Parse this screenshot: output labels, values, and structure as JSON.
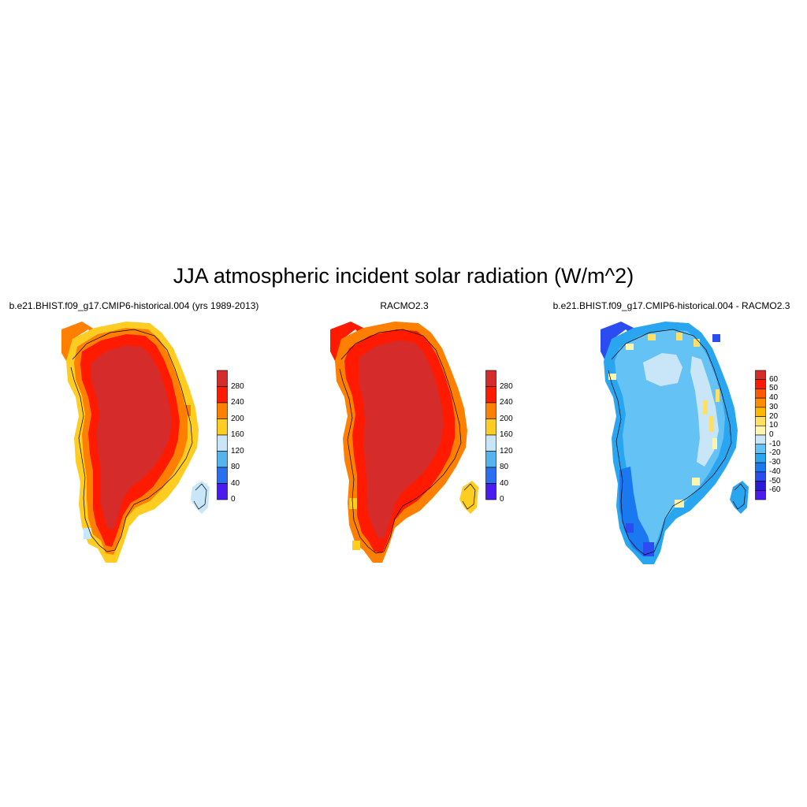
{
  "figure": {
    "title": "JJA atmospheric incident solar radiation (W/m^2)"
  },
  "panels": [
    {
      "title": "b.e21.BHIST.f09_g17.CMIP6-historical.004 (yrs 1989-2013)",
      "colorbar": {
        "labels": [
          "280",
          "240",
          "200",
          "160",
          "120",
          "80",
          "40",
          "0"
        ],
        "colors": [
          "#d52b2b",
          "#ff1a00",
          "#ff8000",
          "#ffcc22",
          "#c8e6f7",
          "#55b4ee",
          "#2a6ff0",
          "#4b1cf0"
        ]
      }
    },
    {
      "title": "RACMO2.3",
      "colorbar": {
        "labels": [
          "280",
          "240",
          "200",
          "160",
          "120",
          "80",
          "40",
          "0"
        ],
        "colors": [
          "#d52b2b",
          "#ff1a00",
          "#ff8000",
          "#ffcc22",
          "#c8e6f7",
          "#55b4ee",
          "#2a6ff0",
          "#4b1cf0"
        ]
      }
    },
    {
      "title": "b.e21.BHIST.f09_g17.CMIP6-historical.004 - RACMO2.3",
      "colorbar": {
        "labels": [
          "60",
          "50",
          "40",
          "30",
          "20",
          "10",
          "0",
          "-10",
          "-20",
          "-30",
          "-40",
          "-50",
          "-60"
        ],
        "colors": [
          "#d52b2b",
          "#ff1a00",
          "#ff5a00",
          "#ff8c00",
          "#ffb700",
          "#ffe066",
          "#fff5b0",
          "#c8e6f7",
          "#64c2f5",
          "#2aa6f0",
          "#1a78f0",
          "#2a4cf0",
          "#2a1ad8",
          "#4b1cf0"
        ]
      }
    }
  ]
}
